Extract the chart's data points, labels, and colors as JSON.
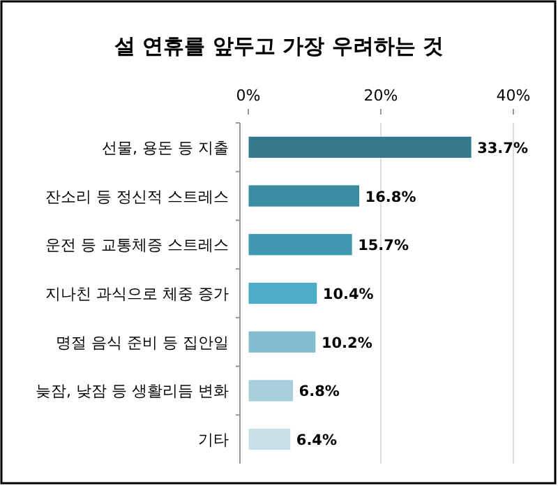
{
  "chart_data": {
    "type": "bar",
    "orientation": "horizontal",
    "title": "설 연휴를 앞두고 가장 우려하는 것",
    "categories": [
      "선물, 용돈 등 지출",
      "잔소리 등 정신적 스트레스",
      "운전 등 교통체증 스트레스",
      "지나친 과식으로 체중 증가",
      "명절 음식 준비 등 집안일",
      "늦잠, 낮잠 등 생활리듬 변화",
      "기타"
    ],
    "values": [
      33.7,
      16.8,
      15.7,
      10.4,
      10.2,
      6.8,
      6.4
    ],
    "colors": [
      "#357a8c",
      "#3a8ca0",
      "#4097b0",
      "#4aacc6",
      "#84bdd0",
      "#a9cfdd",
      "#c8dfe8"
    ],
    "value_labels": [
      "33.7%",
      "16.8%",
      "15.7%",
      "10.4%",
      "10.2%",
      "6.8%",
      "6.4%"
    ],
    "xlim": [
      0,
      40
    ],
    "xticks": [
      {
        "value": 0,
        "label": "0%"
      },
      {
        "value": 20,
        "label": "20%"
      },
      {
        "value": 40,
        "label": "40%"
      }
    ],
    "grid": "x"
  }
}
